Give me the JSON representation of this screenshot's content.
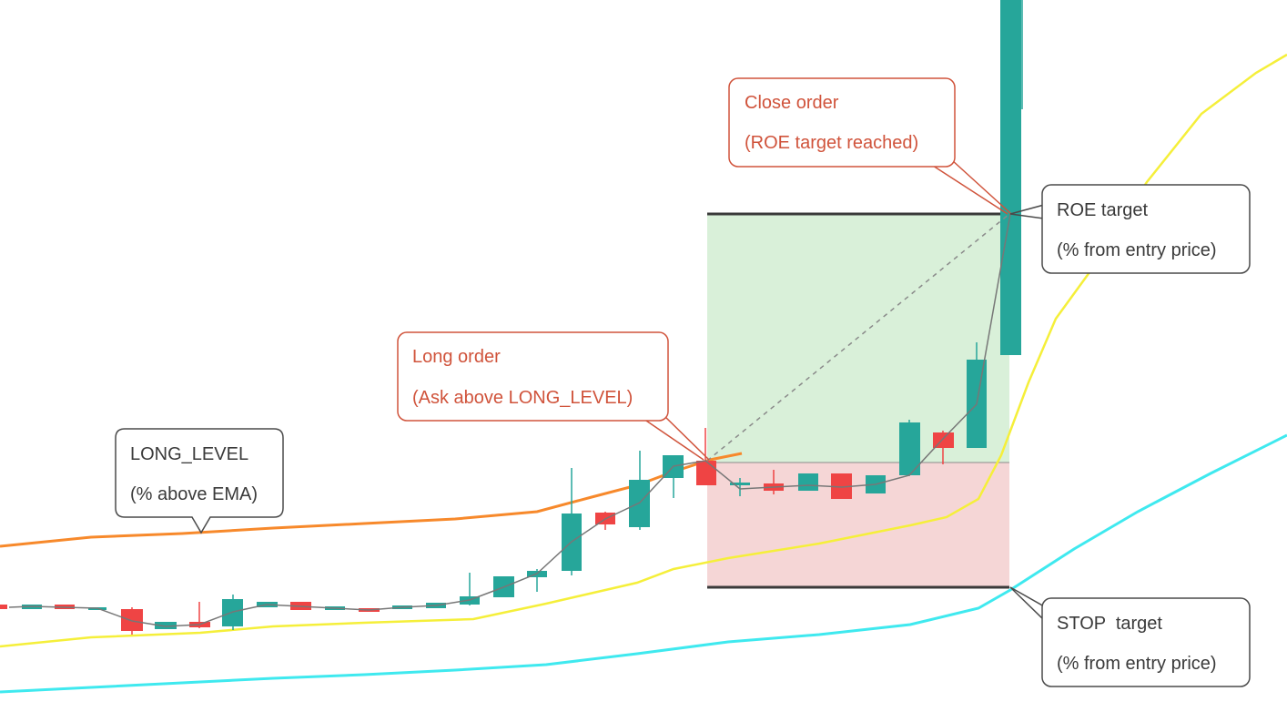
{
  "colors": {
    "bull": "#26a69a",
    "bear": "#ef4444",
    "ema_orange": "#f7892b",
    "yellow_line": "#f5ef3a",
    "cyan_line": "#3fe9ef",
    "profit_zone": "#d9f0d9",
    "loss_zone": "#f5d6d6",
    "callout_red": "#d0533b",
    "callout_gray": "#4a4a4a"
  },
  "callouts": {
    "long_level": {
      "line1": "LONG_LEVEL",
      "line2": "(% above EMA)"
    },
    "long_order": {
      "line1": "Long order",
      "line2": "(Ask above LONG_LEVEL)"
    },
    "close_order": {
      "line1": "Close order",
      "line2": "(ROE target reached)"
    },
    "roe_target": {
      "line1": "ROE target",
      "line2": "(% from entry price)"
    },
    "stop_target": {
      "line1": "STOP  target",
      "line2": "(% from entry price)"
    }
  }
}
